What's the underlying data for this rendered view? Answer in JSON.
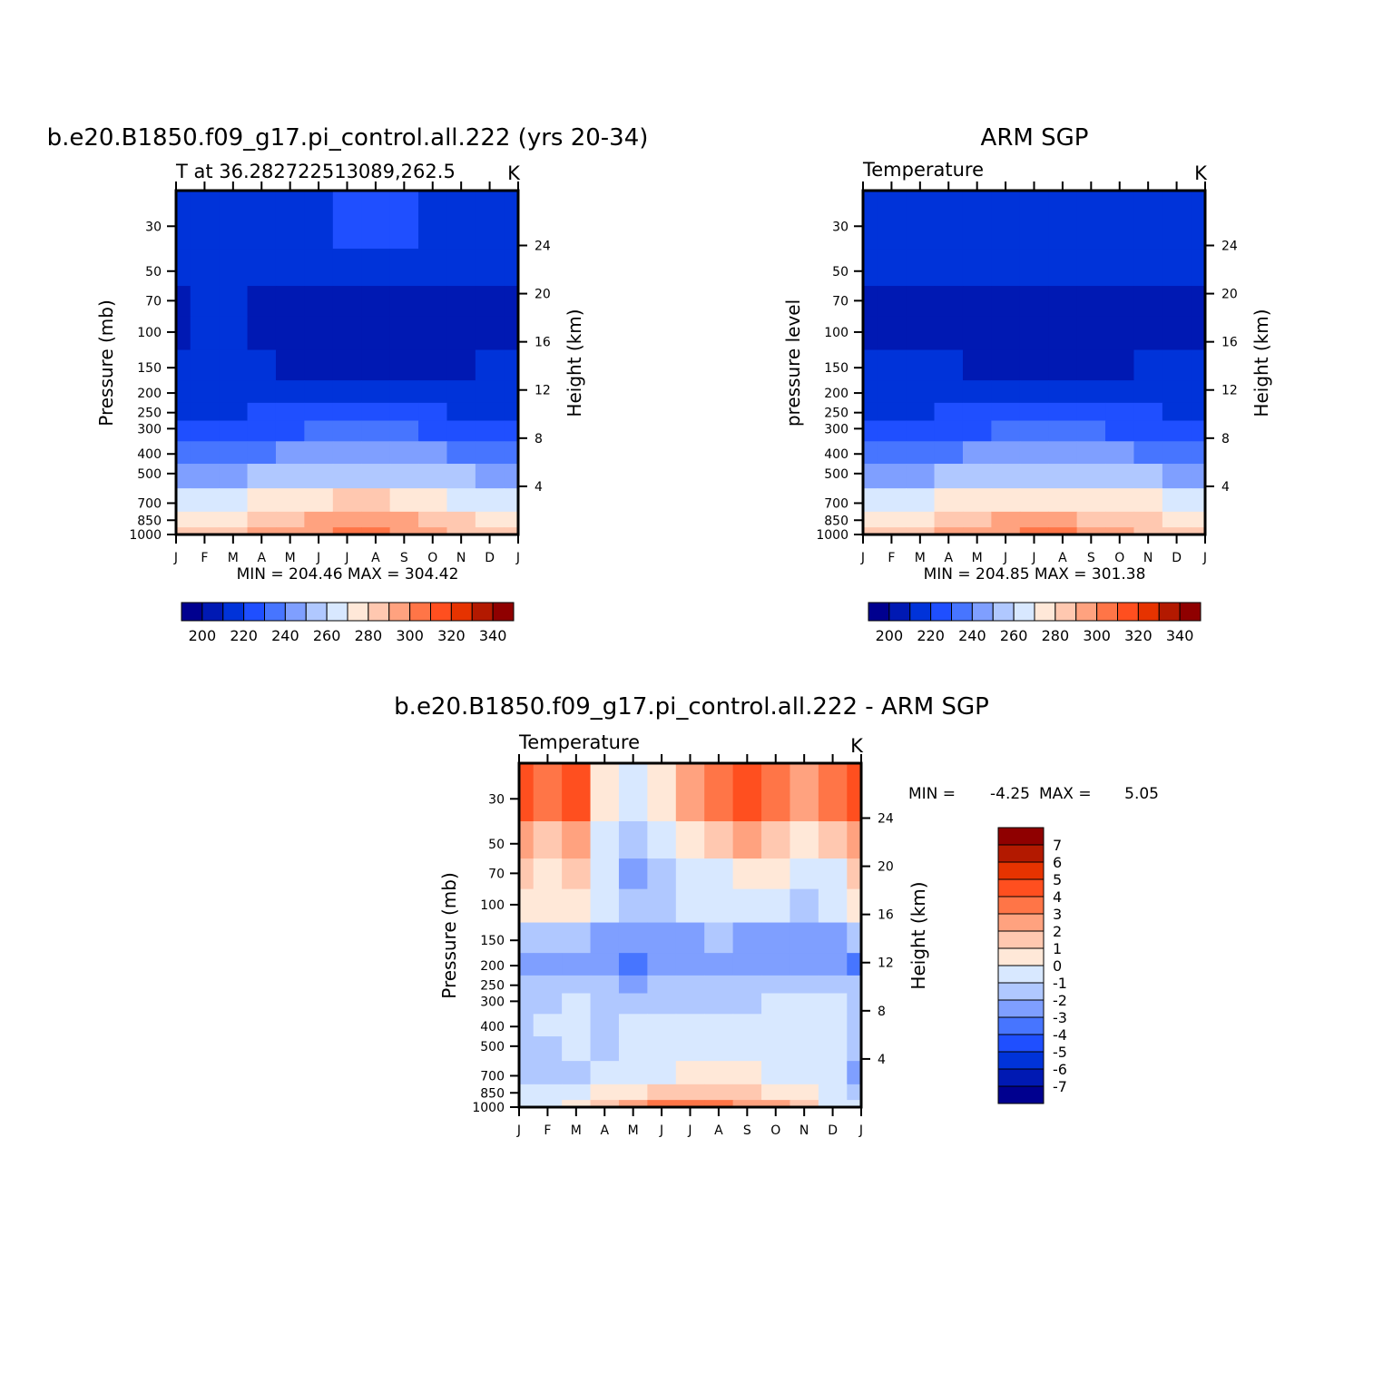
{
  "colors": {
    "temperature_palette": [
      "#00008f",
      "#0019b3",
      "#0033d9",
      "#1f4fff",
      "#4775ff",
      "#7f9fff",
      "#b0c8ff",
      "#d8e8ff",
      "#ffe8d8",
      "#ffc8b0",
      "#ffa27f",
      "#ff7547",
      "#ff4f1f",
      "#e63300",
      "#b31900",
      "#8f0000"
    ],
    "difference_palette": [
      "#00008f",
      "#0019b3",
      "#0033d9",
      "#1f4fff",
      "#4775ff",
      "#7f9fff",
      "#b0c8ff",
      "#d8e8ff",
      "#ffe8d8",
      "#ffc8b0",
      "#ffa27f",
      "#ff7547",
      "#ff4f1f",
      "#e63300",
      "#b31900",
      "#8f0000"
    ]
  },
  "chart_data": [
    {
      "type": "heatmap",
      "title": "b.e20.B1850.f09_g17.pi_control.all.222 (yrs 20-34)",
      "subtitle_left": "T at 36.282722513089,262.5",
      "subtitle_right": "K",
      "ylabel_left": "Pressure (mb)",
      "ylabel_right": "Height (km)",
      "x_ticks": [
        "J",
        "F",
        "M",
        "A",
        "M",
        "J",
        "J",
        "A",
        "S",
        "O",
        "N",
        "D",
        "J"
      ],
      "y_ticks_left": [
        "30",
        "50",
        "70",
        "100",
        "150",
        "200",
        "250",
        "300",
        "400",
        "500",
        "700",
        "850",
        "1000"
      ],
      "y_ticks_right": [
        "24",
        "20",
        "16",
        "12",
        "8",
        "4"
      ],
      "stats": "MIN = 204.46 MAX = 304.42",
      "min": 204.46,
      "max": 304.42,
      "colorbar_labels": [
        "200",
        "220",
        "240",
        "260",
        "280",
        "300",
        "320",
        "340"
      ],
      "levels": [
        190,
        200,
        210,
        220,
        230,
        240,
        250,
        260,
        270,
        280,
        290,
        300,
        310,
        320,
        330,
        340,
        350
      ],
      "months": [
        "Jan",
        "Feb",
        "Mar",
        "Apr",
        "May",
        "Jun",
        "Jul",
        "Aug",
        "Sep",
        "Oct",
        "Nov",
        "Dec",
        "Jan"
      ],
      "pressure_levels": [
        30,
        50,
        70,
        100,
        150,
        200,
        250,
        300,
        400,
        500,
        700,
        850,
        1000
      ],
      "values": [
        [
          214,
          214,
          214,
          215,
          216,
          218,
          220,
          221,
          220,
          218,
          216,
          214,
          214
        ],
        [
          212,
          212,
          212,
          212,
          212,
          212,
          212,
          212,
          212,
          212,
          212,
          212,
          212
        ],
        [
          208,
          212,
          212,
          207,
          206,
          206,
          206,
          206,
          206,
          206,
          206,
          207,
          208
        ],
        [
          208,
          210,
          210,
          208,
          206,
          205,
          205,
          205,
          205,
          205,
          206,
          208,
          208
        ],
        [
          212,
          212,
          212,
          211,
          206,
          205,
          205,
          205,
          205,
          206,
          208,
          210,
          212
        ],
        [
          215,
          215,
          215,
          215,
          214,
          212,
          211,
          211,
          212,
          213,
          214,
          215,
          215
        ],
        [
          218,
          218,
          219,
          220,
          221,
          223,
          224,
          224,
          223,
          221,
          219,
          218,
          218
        ],
        [
          224,
          224,
          225,
          227,
          229,
          231,
          232,
          232,
          231,
          228,
          226,
          224,
          224
        ],
        [
          234,
          235,
          236,
          238,
          241,
          244,
          246,
          246,
          244,
          241,
          238,
          235,
          234
        ],
        [
          246,
          247,
          248,
          251,
          254,
          257,
          259,
          259,
          257,
          253,
          250,
          247,
          246
        ],
        [
          265,
          266,
          268,
          271,
          275,
          278,
          280,
          280,
          277,
          273,
          269,
          266,
          265
        ],
        [
          275,
          276,
          279,
          283,
          287,
          291,
          293,
          293,
          290,
          285,
          280,
          276,
          275
        ],
        [
          281,
          282,
          285,
          290,
          295,
          299,
          303,
          302,
          299,
          293,
          287,
          282,
          281
        ]
      ]
    },
    {
      "type": "heatmap",
      "title": "ARM SGP",
      "subtitle_left": "Temperature",
      "subtitle_right": "K",
      "ylabel_left": "pressure level",
      "ylabel_right": "Height (km)",
      "x_ticks": [
        "J",
        "F",
        "M",
        "A",
        "M",
        "J",
        "J",
        "A",
        "S",
        "O",
        "N",
        "D",
        "J"
      ],
      "y_ticks_left": [
        "30",
        "50",
        "70",
        "100",
        "150",
        "200",
        "250",
        "300",
        "400",
        "500",
        "700",
        "850",
        "1000"
      ],
      "y_ticks_right": [
        "24",
        "20",
        "16",
        "12",
        "8",
        "4"
      ],
      "stats": "MIN = 204.85 MAX = 301.38",
      "min": 204.85,
      "max": 301.38,
      "colorbar_labels": [
        "200",
        "220",
        "240",
        "260",
        "280",
        "300",
        "320",
        "340"
      ],
      "levels": [
        190,
        200,
        210,
        220,
        230,
        240,
        250,
        260,
        270,
        280,
        290,
        300,
        310,
        320,
        330,
        340,
        350
      ],
      "months": [
        "Jan",
        "Feb",
        "Mar",
        "Apr",
        "May",
        "Jun",
        "Jul",
        "Aug",
        "Sep",
        "Oct",
        "Nov",
        "Dec",
        "Jan"
      ],
      "pressure_levels": [
        30,
        50,
        70,
        100,
        150,
        200,
        250,
        300,
        400,
        500,
        700,
        850,
        1000
      ],
      "values": [
        [
          214,
          214,
          214,
          214,
          215,
          216,
          218,
          219,
          217,
          215,
          214,
          214,
          214
        ],
        [
          211,
          212,
          212,
          212,
          212,
          212,
          212,
          212,
          212,
          212,
          212,
          212,
          211
        ],
        [
          208,
          207,
          208,
          208,
          207,
          206,
          206,
          206,
          206,
          207,
          208,
          207,
          208
        ],
        [
          209,
          209,
          207,
          207,
          206,
          205,
          205,
          205,
          206,
          207,
          207,
          209,
          209
        ],
        [
          212,
          212,
          212,
          211,
          209,
          206,
          205,
          205,
          207,
          209,
          211,
          212,
          212
        ],
        [
          215,
          215,
          215,
          215,
          214,
          213,
          212,
          212,
          213,
          214,
          215,
          215,
          215
        ],
        [
          219,
          219,
          219,
          220,
          222,
          223,
          224,
          224,
          223,
          221,
          220,
          219,
          219
        ],
        [
          225,
          225,
          226,
          227,
          229,
          231,
          232,
          232,
          230,
          228,
          226,
          225,
          225
        ],
        [
          235,
          236,
          237,
          239,
          241,
          244,
          245,
          245,
          243,
          240,
          238,
          236,
          235
        ],
        [
          247,
          248,
          249,
          251,
          254,
          257,
          258,
          258,
          256,
          253,
          250,
          248,
          247
        ],
        [
          266,
          267,
          269,
          272,
          275,
          278,
          279,
          279,
          277,
          273,
          270,
          267,
          266
        ],
        [
          276,
          277,
          279,
          283,
          287,
          290,
          292,
          292,
          289,
          285,
          280,
          277,
          276
        ],
        [
          282,
          283,
          285,
          290,
          294,
          297,
          300,
          300,
          297,
          292,
          286,
          283,
          282
        ]
      ]
    },
    {
      "type": "heatmap",
      "title": "b.e20.B1850.f09_g17.pi_control.all.222 - ARM SGP",
      "subtitle_left": "Temperature",
      "subtitle_right": "K",
      "ylabel_left": "Pressure (mb)",
      "ylabel_right": "Height (km)",
      "x_ticks": [
        "J",
        "F",
        "M",
        "A",
        "M",
        "J",
        "J",
        "A",
        "S",
        "O",
        "N",
        "D",
        "J"
      ],
      "y_ticks_left": [
        "30",
        "50",
        "70",
        "100",
        "150",
        "200",
        "250",
        "300",
        "400",
        "500",
        "700",
        "850",
        "1000"
      ],
      "y_ticks_right": [
        "24",
        "20",
        "16",
        "12",
        "8",
        "4"
      ],
      "stats_min_label": "MIN =",
      "stats_min_value": "-4.25",
      "stats_max_label": "MAX =",
      "stats_max_value": "5.05",
      "min": -4.25,
      "max": 5.05,
      "colorbar_labels": [
        "7",
        "6",
        "5",
        "4",
        "3",
        "2",
        "1",
        "0",
        "-1",
        "-2",
        "-3",
        "-4",
        "-5",
        "-6",
        "-7"
      ],
      "levels": [
        -8,
        -7,
        -6,
        -5,
        -4,
        -3,
        -2,
        -1,
        0,
        1,
        2,
        3,
        4,
        5,
        6,
        7,
        8
      ],
      "months": [
        "Jan",
        "Feb",
        "Mar",
        "Apr",
        "May",
        "Jun",
        "Jul",
        "Aug",
        "Sep",
        "Oct",
        "Nov",
        "Dec",
        "Jan"
      ],
      "pressure_levels": [
        30,
        50,
        70,
        100,
        150,
        200,
        250,
        300,
        400,
        500,
        700,
        850,
        1000
      ],
      "values": [
        [
          4.5,
          3.5,
          4.5,
          0.5,
          -0.5,
          0.5,
          2.0,
          3.0,
          4.5,
          3.0,
          2.0,
          3.0,
          4.5
        ],
        [
          2.0,
          1.5,
          2.5,
          -0.5,
          -1.5,
          -1.0,
          0.5,
          1.0,
          2.0,
          1.5,
          0.5,
          1.0,
          2.0
        ],
        [
          1.0,
          0.5,
          1.5,
          -1.0,
          -2.5,
          -1.5,
          -0.5,
          -0.5,
          0.5,
          0.5,
          -0.5,
          -0.5,
          1.0
        ],
        [
          0.5,
          0.5,
          0.5,
          -1.0,
          -2.0,
          -1.5,
          -1.0,
          -1.0,
          -0.5,
          -0.5,
          -1.5,
          -1.0,
          0.5
        ],
        [
          -1.5,
          -1.5,
          -2.0,
          -2.5,
          -3.0,
          -3.0,
          -2.5,
          -2.0,
          -2.5,
          -2.5,
          -2.5,
          -2.5,
          -2.0
        ],
        [
          -3.0,
          -2.5,
          -2.5,
          -3.0,
          -4.0,
          -3.0,
          -2.5,
          -2.5,
          -3.0,
          -3.0,
          -2.5,
          -2.5,
          -3.5
        ],
        [
          -2.0,
          -2.0,
          -1.5,
          -2.0,
          -2.5,
          -2.0,
          -2.0,
          -2.0,
          -2.0,
          -1.5,
          -1.5,
          -1.5,
          -2.0
        ],
        [
          -1.5,
          -1.5,
          -0.5,
          -1.5,
          -1.5,
          -1.5,
          -1.5,
          -1.5,
          -1.5,
          -1.0,
          -0.5,
          -0.5,
          -1.5
        ],
        [
          -1.5,
          -1.0,
          -0.5,
          -1.5,
          -1.0,
          -0.5,
          -0.5,
          -0.5,
          -0.5,
          -1.0,
          -1.0,
          -0.5,
          -1.5
        ],
        [
          -1.5,
          -1.5,
          -1.0,
          -1.5,
          -1.0,
          -0.5,
          -0.5,
          -0.5,
          -0.5,
          -0.5,
          -0.5,
          -1.0,
          -2.0
        ],
        [
          -1.5,
          -1.5,
          -1.5,
          -1.0,
          -0.5,
          -0.5,
          0.2,
          0.5,
          0.3,
          -0.5,
          -0.5,
          -1.0,
          -2.5
        ],
        [
          -1.0,
          -1.0,
          -0.5,
          0.5,
          0.5,
          1.0,
          1.2,
          1.2,
          1.0,
          0.5,
          0.2,
          -0.5,
          -1.5
        ],
        [
          -1.0,
          -0.8,
          0.5,
          1.5,
          2.5,
          3.0,
          3.0,
          3.0,
          2.5,
          2.0,
          1.0,
          -0.5,
          -1.0
        ]
      ]
    }
  ]
}
